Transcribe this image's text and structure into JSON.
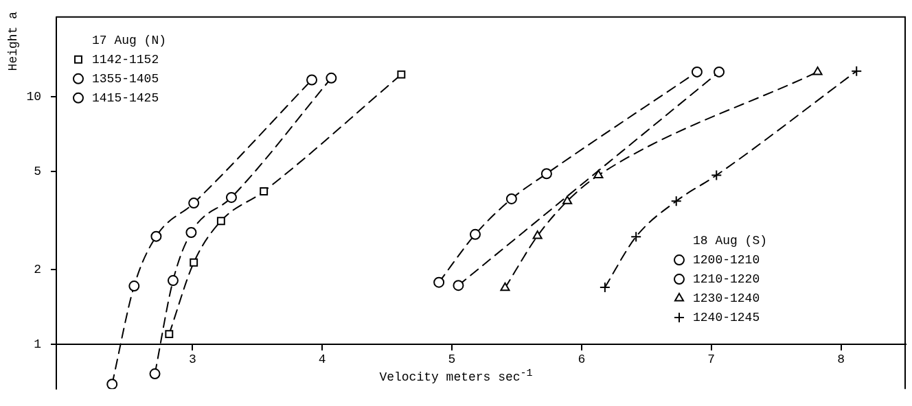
{
  "chart_data": {
    "type": "line",
    "xlabel": "Velocity meters sec$^{-1}$",
    "ylabel": "Height a",
    "annotations": [
      "17 Aug (N)",
      "18 Aug (S)"
    ],
    "xlim": [
      1.95,
      8.5
    ],
    "xticks": [
      3,
      4,
      5,
      6,
      7,
      8
    ],
    "ylim": [
      0.66,
      21
    ],
    "yticks": [
      1,
      2,
      5,
      10
    ],
    "log": "y",
    "grid": false,
    "legend": "top left",
    "line_style": "dashed",
    "series": [
      {
        "name": "1142-1152",
        "color": "#000000",
        "marker": "square",
        "x": [
          2.82,
          3.01,
          3.22,
          3.55,
          4.61
        ],
        "values": [
          1.1,
          2.14,
          3.15,
          4.15,
          12.3
        ]
      },
      {
        "name": "1355-1405",
        "color": "#000000",
        "marker": "circle",
        "x": [
          2.71,
          2.85,
          2.99,
          3.3,
          4.07
        ],
        "values": [
          0.76,
          1.81,
          2.83,
          3.92,
          11.9
        ]
      },
      {
        "name": "1415-1425",
        "color": "#000000",
        "marker": "circle",
        "x": [
          2.38,
          2.55,
          2.72,
          3.01,
          3.92
        ],
        "values": [
          0.69,
          1.72,
          2.73,
          3.72,
          11.7
        ]
      },
      {
        "name": "1200-1210",
        "color": "#000000",
        "marker": "circle",
        "x": [
          5.05,
          7.06
        ],
        "values": [
          1.73,
          12.6
        ]
      },
      {
        "name": "1210-1220",
        "color": "#000000",
        "marker": "circle",
        "x": [
          4.9,
          5.18,
          5.46,
          5.73,
          6.89
        ],
        "values": [
          1.78,
          2.78,
          3.87,
          4.89,
          12.6
        ]
      },
      {
        "name": "1230-1240",
        "color": "#000000",
        "marker": "triangle",
        "x": [
          5.41,
          5.66,
          5.89,
          6.13,
          7.82
        ],
        "values": [
          1.69,
          2.74,
          3.79,
          4.82,
          12.6
        ]
      },
      {
        "name": "1240-1245",
        "color": "#000000",
        "marker": "cross",
        "x": [
          6.18,
          6.42,
          6.73,
          7.04,
          8.12
        ],
        "values": [
          1.7,
          2.72,
          3.79,
          4.82,
          12.7
        ]
      }
    ]
  }
}
